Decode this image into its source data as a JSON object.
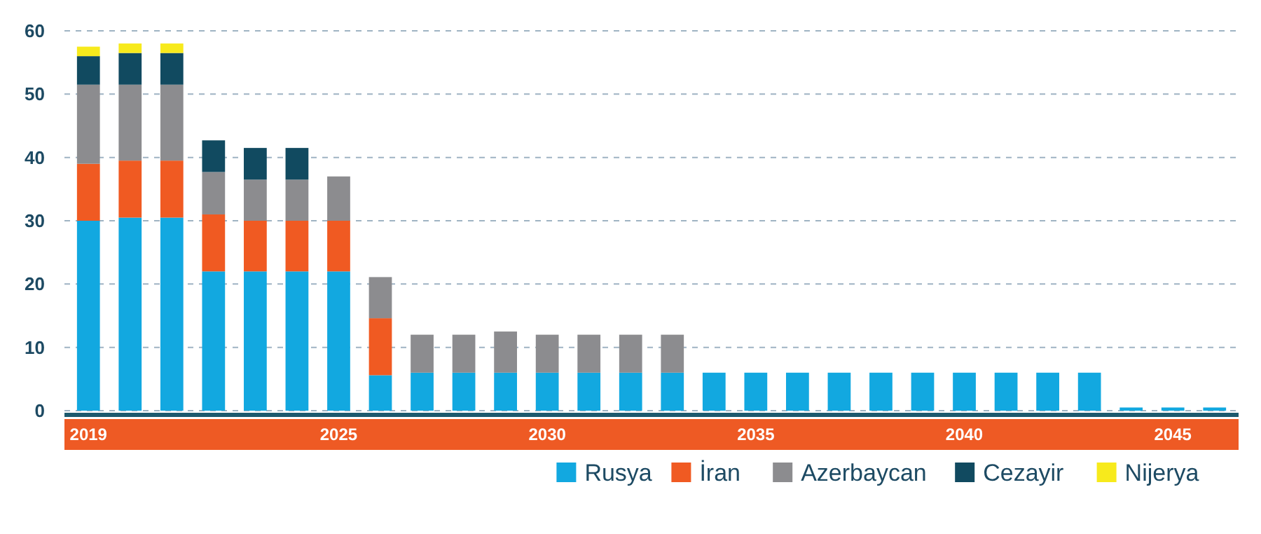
{
  "chart_data": {
    "type": "bar",
    "stacked": true,
    "categories": [
      "2019",
      null,
      null,
      null,
      null,
      null,
      "2025",
      null,
      null,
      null,
      null,
      "2030",
      null,
      null,
      null,
      null,
      "2035",
      null,
      null,
      null,
      null,
      "2040",
      null,
      null,
      null,
      null,
      "2045",
      null
    ],
    "series": [
      {
        "name": "Rusya",
        "color": "#12a8e0",
        "values": [
          30,
          30.5,
          30.5,
          22,
          22,
          22,
          22,
          5.6,
          6,
          6,
          6,
          6,
          6,
          6,
          6,
          6,
          6,
          6,
          6,
          6,
          6,
          6,
          6,
          6,
          6,
          0.5,
          0.5,
          0.5
        ]
      },
      {
        "name": "İran",
        "color": "#f05a22",
        "values": [
          9,
          9,
          9,
          9,
          8,
          8,
          8,
          9,
          null,
          null,
          null,
          null,
          null,
          null,
          null,
          null,
          null,
          null,
          null,
          null,
          null,
          null,
          null,
          null,
          null,
          null,
          null,
          null
        ]
      },
      {
        "name": "Azerbaycan",
        "color": "#8c8c8f",
        "values": [
          12.5,
          12,
          12,
          6.7,
          6.5,
          6.5,
          7,
          6.5,
          6,
          6,
          6.5,
          6,
          6,
          6,
          6,
          null,
          null,
          null,
          null,
          null,
          null,
          null,
          null,
          null,
          null,
          null,
          null,
          null
        ]
      },
      {
        "name": "Cezayir",
        "color": "#114a60",
        "values": [
          4.5,
          5,
          5,
          5,
          5,
          5,
          null,
          null,
          null,
          null,
          null,
          null,
          null,
          null,
          null,
          null,
          null,
          null,
          null,
          null,
          null,
          null,
          null,
          null,
          null,
          null,
          null,
          null
        ]
      },
      {
        "name": "Nijerya",
        "color": "#f7ea1c",
        "values": [
          1.5,
          1.5,
          1.5,
          null,
          null,
          null,
          null,
          null,
          null,
          null,
          null,
          null,
          null,
          null,
          null,
          null,
          null,
          null,
          null,
          null,
          null,
          null,
          null,
          null,
          null,
          null,
          null,
          null
        ]
      }
    ],
    "ylim": [
      0,
      60
    ],
    "yticks": [
      0,
      10,
      20,
      30,
      40,
      50,
      60
    ],
    "grid": "y",
    "legend": "bottom right"
  }
}
